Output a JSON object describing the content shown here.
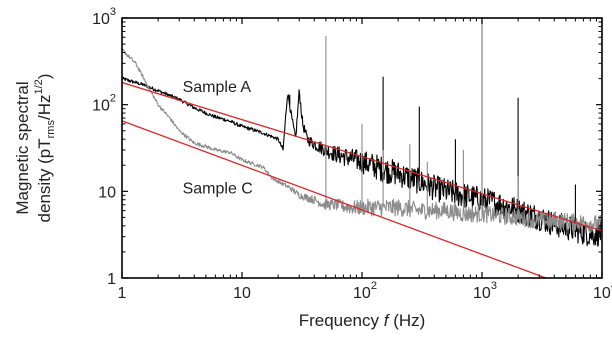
{
  "chart_data": {
    "type": "line",
    "xscale": "log",
    "yscale": "log",
    "xlim": [
      1,
      10000
    ],
    "ylim": [
      1,
      1000
    ],
    "grid": false,
    "xlabel": {
      "prefix": "Frequency ",
      "var": "f",
      "suffix": " (Hz)"
    },
    "ylabel": {
      "line1": "Magnetic spectral",
      "line2_prefix": "density (pT",
      "line2_sub": "rms",
      "line2_mid": "/Hz",
      "line2_sup": "1/2",
      "line2_suffix": ")"
    },
    "x_ticks": [
      {
        "value": 1,
        "base": "1",
        "exp": ""
      },
      {
        "value": 10,
        "base": "10",
        "exp": ""
      },
      {
        "value": 100,
        "base": "10",
        "exp": "2"
      },
      {
        "value": 1000,
        "base": "10",
        "exp": "3"
      },
      {
        "value": 10000,
        "base": "10",
        "exp": "4"
      }
    ],
    "y_ticks": [
      {
        "value": 1,
        "base": "1",
        "exp": ""
      },
      {
        "value": 10,
        "base": "10",
        "exp": ""
      },
      {
        "value": 100,
        "base": "10",
        "exp": "2"
      },
      {
        "value": 1000,
        "base": "10",
        "exp": "3"
      }
    ],
    "annotations": [
      {
        "text": "Sample A",
        "x": 3.2,
        "y": 140
      },
      {
        "text": "Sample C",
        "x": 3.2,
        "y": 9.5
      }
    ],
    "series": [
      {
        "color": "#000000",
        "noise": 0.13,
        "points": [
          [
            1,
            200
          ],
          [
            1.5,
            170
          ],
          [
            2,
            145
          ],
          [
            3,
            115
          ],
          [
            4,
            92
          ],
          [
            5,
            80
          ],
          [
            6,
            72
          ],
          [
            7,
            68
          ],
          [
            8,
            64
          ],
          [
            10,
            56
          ],
          [
            12,
            52
          ],
          [
            15,
            47
          ],
          [
            20,
            40
          ],
          [
            22,
            30
          ],
          [
            24,
            140
          ],
          [
            26,
            70
          ],
          [
            28,
            40
          ],
          [
            30,
            145
          ],
          [
            32,
            60
          ],
          [
            35,
            40
          ],
          [
            40,
            35
          ],
          [
            50,
            30
          ],
          [
            60,
            27
          ],
          [
            80,
            24
          ],
          [
            100,
            22
          ],
          [
            150,
            18
          ],
          [
            200,
            16
          ],
          [
            300,
            13
          ],
          [
            400,
            11
          ],
          [
            500,
            10
          ],
          [
            700,
            9
          ],
          [
            1000,
            8
          ],
          [
            1500,
            7
          ],
          [
            2000,
            6
          ],
          [
            3000,
            5
          ],
          [
            4000,
            4.2
          ],
          [
            6000,
            3.6
          ],
          [
            8000,
            3.2
          ],
          [
            10000,
            3.3
          ]
        ],
        "spikes": [
          [
            25,
            130
          ],
          [
            150,
            210
          ],
          [
            300,
            95
          ],
          [
            600,
            40
          ],
          [
            1000,
            950
          ],
          [
            2000,
            120
          ],
          [
            6000,
            12
          ]
        ]
      },
      {
        "color": "#8c8c8c",
        "noise": 0.08,
        "points": [
          [
            1,
            430
          ],
          [
            1.3,
            300
          ],
          [
            1.7,
            150
          ],
          [
            2,
            100
          ],
          [
            2.5,
            70
          ],
          [
            3,
            50
          ],
          [
            3.5,
            42
          ],
          [
            4,
            36
          ],
          [
            5,
            33
          ],
          [
            6,
            30
          ],
          [
            8,
            28
          ],
          [
            10,
            23
          ],
          [
            15,
            19
          ],
          [
            18,
            14
          ],
          [
            20,
            13
          ],
          [
            25,
            11
          ],
          [
            30,
            9
          ],
          [
            40,
            8
          ],
          [
            49,
            7
          ],
          [
            51,
            7
          ],
          [
            60,
            7
          ],
          [
            80,
            6.5
          ],
          [
            100,
            6.5
          ],
          [
            150,
            6.5
          ],
          [
            200,
            6.5
          ],
          [
            300,
            6
          ],
          [
            500,
            6
          ],
          [
            700,
            5.5
          ],
          [
            1000,
            5.5
          ],
          [
            2000,
            5
          ],
          [
            3000,
            4.6
          ],
          [
            5000,
            4.5
          ],
          [
            10000,
            4.2
          ]
        ],
        "spikes": [
          [
            50,
            620
          ],
          [
            100,
            60
          ],
          [
            150,
            30
          ],
          [
            250,
            35
          ],
          [
            350,
            22
          ],
          [
            700,
            30
          ],
          [
            1000,
            1000
          ],
          [
            2000,
            15
          ]
        ]
      }
    ],
    "fit_lines": [
      {
        "color": "#d62728",
        "x1": 1,
        "y1": 180,
        "x2": 10000,
        "y2": 3.5
      },
      {
        "color": "#d62728",
        "x1": 1,
        "y1": 65,
        "x2": 3400,
        "y2": 1
      }
    ]
  }
}
